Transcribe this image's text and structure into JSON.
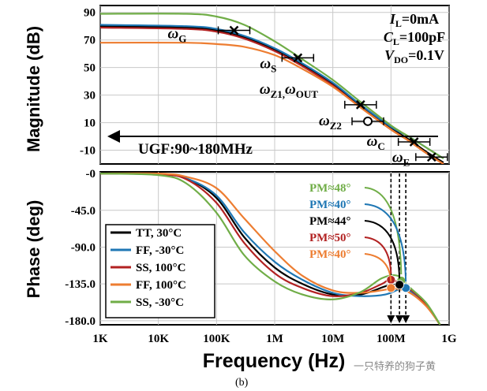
{
  "chart_data": [
    {
      "type": "line",
      "panel": "magnitude",
      "ylabel": "Magnitude (dB)",
      "x_scale": "log",
      "xlim": [
        1000,
        1000000000
      ],
      "ylim": [
        -20,
        95
      ],
      "y_ticks": [
        "90",
        "70",
        "50",
        "30",
        "10",
        "-10"
      ],
      "y_tick_values": [
        90,
        70,
        50,
        30,
        10,
        -10
      ],
      "series": [
        {
          "name": "TT, 30°C",
          "color": "#000000",
          "points": [
            [
              1000,
              80
            ],
            [
              30000,
              79
            ],
            [
              100000,
              77
            ],
            [
              300000,
              72
            ],
            [
              1000000,
              63
            ],
            [
              3000000,
              52
            ],
            [
              10000000,
              38
            ],
            [
              30000000,
              22
            ],
            [
              100000000,
              6
            ],
            [
              200000000,
              -2
            ],
            [
              400000000,
              -11
            ],
            [
              800000000,
              -19
            ]
          ]
        },
        {
          "name": "FF, -30°C",
          "color": "#1f77b4",
          "points": [
            [
              1000,
              81
            ],
            [
              30000,
              80
            ],
            [
              100000,
              78
            ],
            [
              300000,
              73
            ],
            [
              1000000,
              64
            ],
            [
              3000000,
              53
            ],
            [
              10000000,
              39
            ],
            [
              30000000,
              23
            ],
            [
              100000000,
              7
            ],
            [
              200000000,
              0
            ],
            [
              400000000,
              -8
            ],
            [
              800000000,
              -16
            ]
          ]
        },
        {
          "name": "SS, 100°C",
          "color": "#b22222",
          "points": [
            [
              1000,
              79
            ],
            [
              30000,
              78
            ],
            [
              100000,
              76
            ],
            [
              300000,
              71
            ],
            [
              1000000,
              62
            ],
            [
              3000000,
              51
            ],
            [
              10000000,
              37
            ],
            [
              30000000,
              21
            ],
            [
              100000000,
              5
            ],
            [
              200000000,
              -3
            ],
            [
              400000000,
              -12
            ],
            [
              800000000,
              -20
            ]
          ]
        },
        {
          "name": "FF, 100°C",
          "color": "#ed7d31",
          "points": [
            [
              1000,
              68
            ],
            [
              30000,
              68
            ],
            [
              100000,
              67
            ],
            [
              300000,
              65
            ],
            [
              1000000,
              59
            ],
            [
              3000000,
              49
            ],
            [
              10000000,
              36
            ],
            [
              30000000,
              21
            ],
            [
              100000000,
              5
            ],
            [
              200000000,
              -3
            ],
            [
              400000000,
              -12
            ],
            [
              800000000,
              -20
            ]
          ]
        },
        {
          "name": "SS, -30°C",
          "color": "#70ad47",
          "points": [
            [
              1000,
              89
            ],
            [
              30000,
              89
            ],
            [
              100000,
              87
            ],
            [
              300000,
              81
            ],
            [
              1000000,
              69
            ],
            [
              3000000,
              56
            ],
            [
              10000000,
              41
            ],
            [
              30000000,
              25
            ],
            [
              100000000,
              8
            ],
            [
              200000000,
              0
            ],
            [
              400000000,
              -8
            ],
            [
              800000000,
              -16
            ]
          ]
        }
      ],
      "annotations": {
        "conditions": [
          {
            "sym": "I",
            "sub": "L",
            "val": "=0mA"
          },
          {
            "sym": "C",
            "sub": "L",
            "val": "=100pF"
          },
          {
            "sym": "V",
            "sub": "DO",
            "val": "=0.1V"
          }
        ],
        "ugf_label": "UGF:90~180MHz",
        "poles_zeros": [
          {
            "sym": "ω",
            "sub": "G",
            "marker": "x",
            "x": 200000,
            "y": 77
          },
          {
            "sym": "ω",
            "sub": "S",
            "marker": "x",
            "x": 2500000,
            "y": 57
          },
          {
            "sym": "ω",
            "sub": "Z1,",
            "sym2": "ω",
            "sub2": "OUT",
            "marker": "x",
            "x": 30000000,
            "y": 23
          },
          {
            "sym": "ω",
            "sub": "Z2",
            "marker": "o",
            "x": 40000000,
            "y": 11
          },
          {
            "sym": "ω",
            "sub": "C",
            "marker": "x",
            "x": 250000000,
            "y": -4
          },
          {
            "sym": "ω",
            "sub": "E",
            "marker": "x",
            "x": 500000000,
            "y": -15
          }
        ]
      }
    },
    {
      "type": "line",
      "panel": "phase",
      "xlabel": "Frequency (Hz)",
      "ylabel": "Phase (deg)",
      "x_scale": "log",
      "xlim": [
        1000,
        1000000000
      ],
      "ylim": [
        -185,
        2
      ],
      "x_ticks": [
        "1K",
        "10K",
        "100K",
        "1M",
        "10M",
        "100M",
        "1G"
      ],
      "x_tick_values": [
        1000,
        10000,
        100000,
        1000000,
        10000000,
        100000000,
        1000000000
      ],
      "y_ticks": [
        "-0",
        "-45.0",
        "-90.0",
        "-135.0",
        "-180.0"
      ],
      "y_tick_values": [
        0,
        -45,
        -90,
        -135,
        -180
      ],
      "series": [
        {
          "name": "TT, 30°C",
          "color": "#000000",
          "points": [
            [
              1000,
              0
            ],
            [
              10000,
              -1
            ],
            [
              30000,
              -6
            ],
            [
              100000,
              -30
            ],
            [
              300000,
              -78
            ],
            [
              1000000,
              -115
            ],
            [
              3000000,
              -135
            ],
            [
              10000000,
              -148
            ],
            [
              30000000,
              -148
            ],
            [
              80000000,
              -138
            ],
            [
              120000000,
              -136
            ],
            [
              200000000,
              -142
            ],
            [
              400000000,
              -160
            ],
            [
              700000000,
              -185
            ]
          ]
        },
        {
          "name": "FF, -30°C",
          "color": "#1f77b4",
          "points": [
            [
              1000,
              0
            ],
            [
              10000,
              -1
            ],
            [
              30000,
              -6
            ],
            [
              100000,
              -27
            ],
            [
              300000,
              -72
            ],
            [
              1000000,
              -108
            ],
            [
              3000000,
              -130
            ],
            [
              10000000,
              -146
            ],
            [
              30000000,
              -150
            ],
            [
              80000000,
              -148
            ],
            [
              160000000,
              -140
            ],
            [
              220000000,
              -144
            ],
            [
              400000000,
              -160
            ],
            [
              700000000,
              -185
            ]
          ]
        },
        {
          "name": "SS, 100°C",
          "color": "#b22222",
          "points": [
            [
              1000,
              0
            ],
            [
              10000,
              -1
            ],
            [
              30000,
              -7
            ],
            [
              100000,
              -36
            ],
            [
              300000,
              -85
            ],
            [
              1000000,
              -122
            ],
            [
              3000000,
              -140
            ],
            [
              10000000,
              -150
            ],
            [
              30000000,
              -146
            ],
            [
              70000000,
              -135
            ],
            [
              100000000,
              -130
            ],
            [
              200000000,
              -140
            ],
            [
              400000000,
              -160
            ],
            [
              700000000,
              -185
            ]
          ]
        },
        {
          "name": "FF, 100°C",
          "color": "#ed7d31",
          "points": [
            [
              1000,
              0
            ],
            [
              10000,
              0
            ],
            [
              30000,
              -4
            ],
            [
              100000,
              -18
            ],
            [
              300000,
              -55
            ],
            [
              1000000,
              -95
            ],
            [
              3000000,
              -125
            ],
            [
              10000000,
              -143
            ],
            [
              30000000,
              -146
            ],
            [
              80000000,
              -142
            ],
            [
              100000000,
              -140
            ],
            [
              200000000,
              -145
            ],
            [
              400000000,
              -162
            ],
            [
              700000000,
              -185
            ]
          ]
        },
        {
          "name": "SS, -30°C",
          "color": "#70ad47",
          "points": [
            [
              1000,
              0
            ],
            [
              10000,
              -2
            ],
            [
              30000,
              -12
            ],
            [
              100000,
              -48
            ],
            [
              300000,
              -100
            ],
            [
              1000000,
              -132
            ],
            [
              3000000,
              -148
            ],
            [
              10000000,
              -154
            ],
            [
              30000000,
              -145
            ],
            [
              70000000,
              -128
            ],
            [
              130000000,
              -125
            ],
            [
              200000000,
              -138
            ],
            [
              400000000,
              -158
            ],
            [
              700000000,
              -185
            ]
          ]
        }
      ],
      "pm_labels": [
        {
          "text": "PM≈48°",
          "color": "#70ad47",
          "fx": 150000000,
          "fy": -131
        },
        {
          "text": "PM≈40°",
          "color": "#1f77b4",
          "fx": 180000000,
          "fy": -140
        },
        {
          "text": "PM≈44°",
          "color": "#000000",
          "fx": 140000000,
          "fy": -136
        },
        {
          "text": "PM≈50°",
          "color": "#b22222",
          "fx": 100000000,
          "fy": -130
        },
        {
          "text": "PM≈40°",
          "color": "#ed7d31",
          "fx": 100000000,
          "fy": -140
        }
      ],
      "legend": {
        "placement": "bottom-left"
      }
    }
  ],
  "caption": "(b)",
  "watermark": "一只特养的狗子黄"
}
